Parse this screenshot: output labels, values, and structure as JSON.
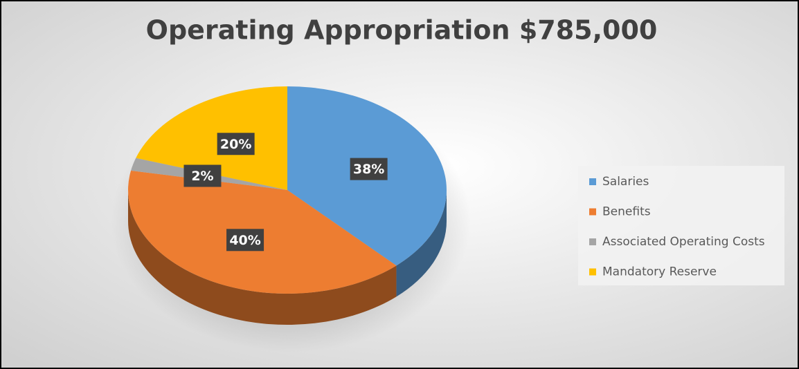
{
  "chart_data": {
    "type": "pie",
    "title": "Operating Appropriation $785,000",
    "categories": [
      "Salaries",
      "Benefits",
      "Associated Operating Costs",
      "Mandatory Reserve"
    ],
    "values": [
      38,
      40,
      2,
      20
    ],
    "value_labels": [
      "38%",
      "40%",
      "2%",
      "20%"
    ],
    "colors": [
      "#5b9bd5",
      "#ed7d31",
      "#a5a5a5",
      "#ffc000"
    ],
    "legend": "right"
  }
}
